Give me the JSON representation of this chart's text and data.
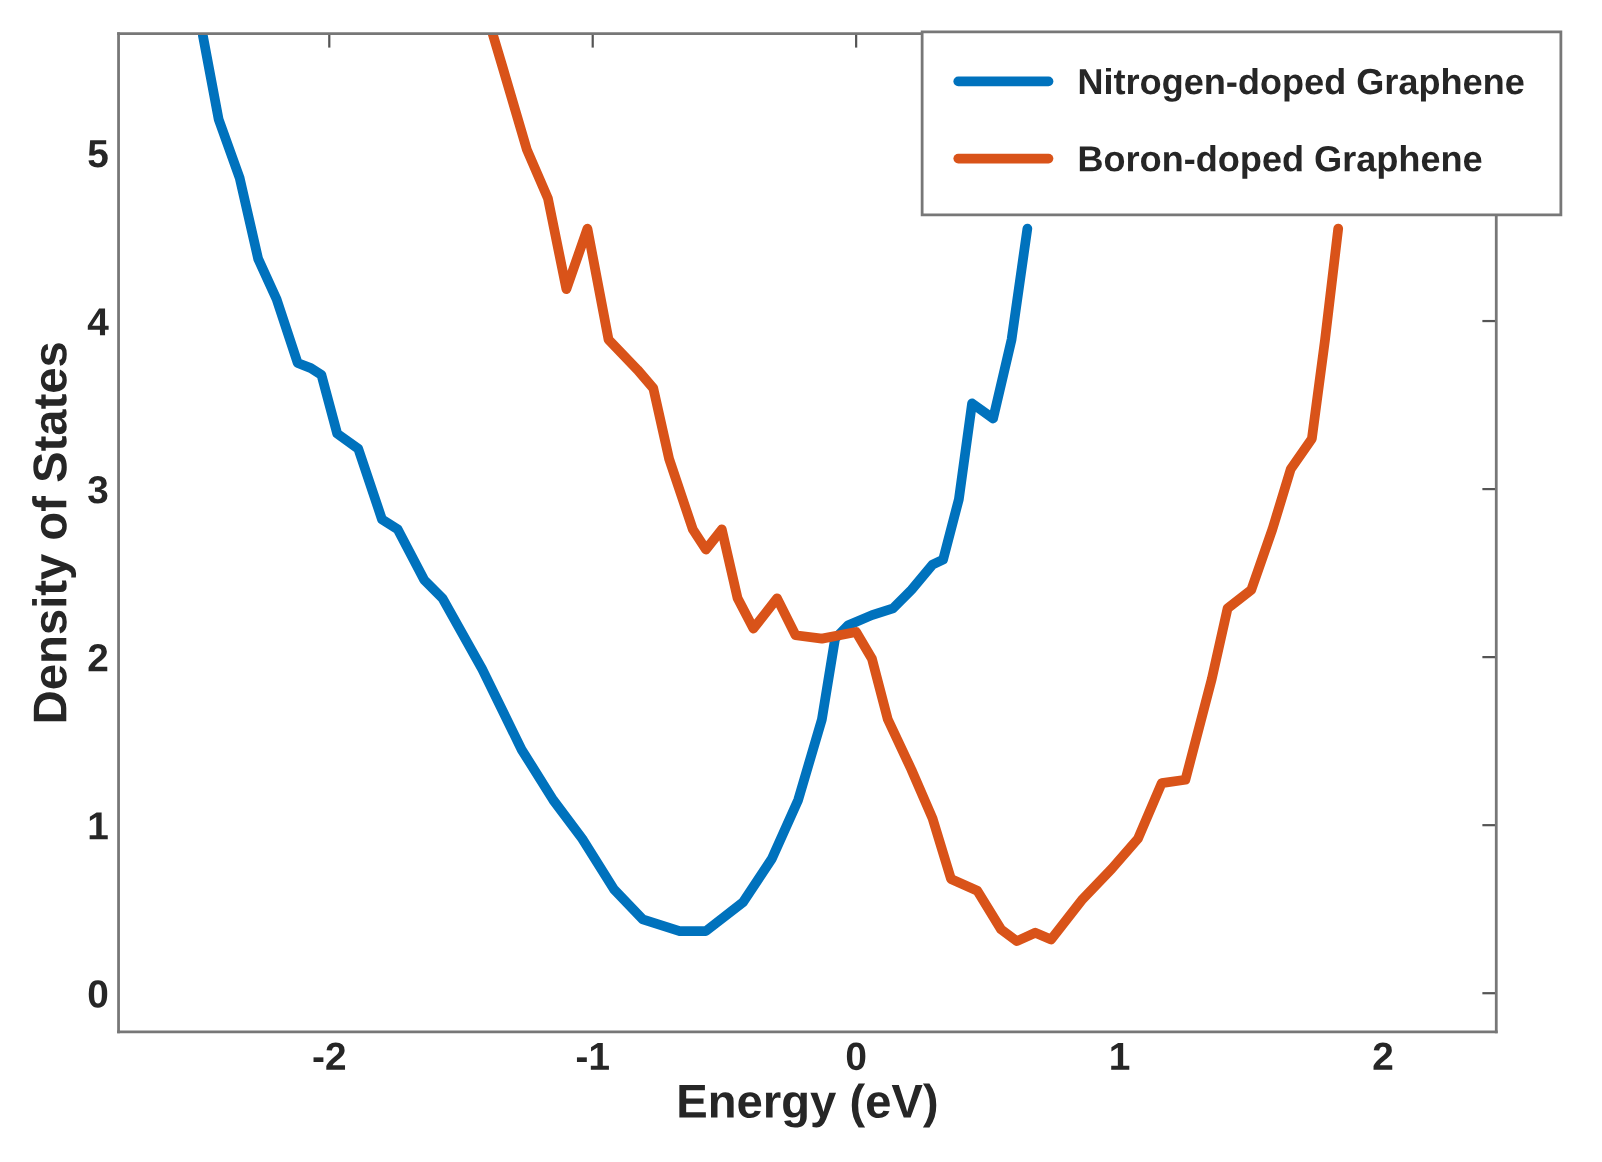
{
  "chart_data": {
    "type": "line",
    "xlabel": "Energy (eV)",
    "ylabel": "Density of States",
    "xlim": [
      -2.8,
      2.43
    ],
    "ylim": [
      -0.23,
      5.71
    ],
    "xticks": [
      -2,
      -1,
      0,
      1,
      2
    ],
    "yticks": [
      0,
      1,
      2,
      3,
      4,
      5
    ],
    "legend": "top right",
    "grid": false,
    "series": [
      {
        "name": "Nitrogen-doped Graphene",
        "color": "#0072bd",
        "x": [
          -2.48,
          -2.42,
          -2.34,
          -2.27,
          -2.2,
          -2.12,
          -2.07,
          -2.03,
          -1.97,
          -1.89,
          -1.8,
          -1.74,
          -1.64,
          -1.57,
          -1.42,
          -1.27,
          -1.15,
          -1.04,
          -0.92,
          -0.81,
          -0.67,
          -0.57,
          -0.43,
          -0.32,
          -0.22,
          -0.13,
          -0.08,
          -0.03,
          0.06,
          0.14,
          0.21,
          0.29,
          0.33,
          0.39,
          0.44,
          0.52,
          0.59,
          0.65
        ],
        "values": [
          5.7,
          5.2,
          4.85,
          4.37,
          4.13,
          3.75,
          3.72,
          3.68,
          3.33,
          3.24,
          2.82,
          2.76,
          2.46,
          2.35,
          1.93,
          1.45,
          1.15,
          0.92,
          0.62,
          0.44,
          0.37,
          0.37,
          0.54,
          0.8,
          1.15,
          1.63,
          2.11,
          2.19,
          2.25,
          2.29,
          2.4,
          2.55,
          2.58,
          2.94,
          3.51,
          3.42,
          3.89,
          4.55
        ]
      },
      {
        "name": "Boron-doped Graphene",
        "color": "#d95319",
        "x": [
          -1.38,
          -1.34,
          -1.25,
          -1.17,
          -1.1,
          -1.02,
          -0.94,
          -0.83,
          -0.77,
          -0.71,
          -0.62,
          -0.57,
          -0.51,
          -0.45,
          -0.39,
          -0.3,
          -0.23,
          -0.13,
          0.0,
          0.06,
          0.12,
          0.21,
          0.29,
          0.36,
          0.46,
          0.55,
          0.61,
          0.68,
          0.74,
          0.86,
          0.97,
          1.07,
          1.16,
          1.25,
          1.35,
          1.41,
          1.5,
          1.58,
          1.65,
          1.73,
          1.78,
          1.83
        ],
        "values": [
          5.71,
          5.5,
          5.02,
          4.73,
          4.19,
          4.55,
          3.89,
          3.71,
          3.6,
          3.18,
          2.76,
          2.64,
          2.76,
          2.35,
          2.17,
          2.35,
          2.13,
          2.11,
          2.15,
          1.99,
          1.63,
          1.33,
          1.04,
          0.68,
          0.61,
          0.38,
          0.31,
          0.36,
          0.32,
          0.56,
          0.74,
          0.92,
          1.25,
          1.27,
          1.87,
          2.29,
          2.4,
          2.76,
          3.12,
          3.3,
          3.89,
          4.55
        ]
      }
    ]
  }
}
